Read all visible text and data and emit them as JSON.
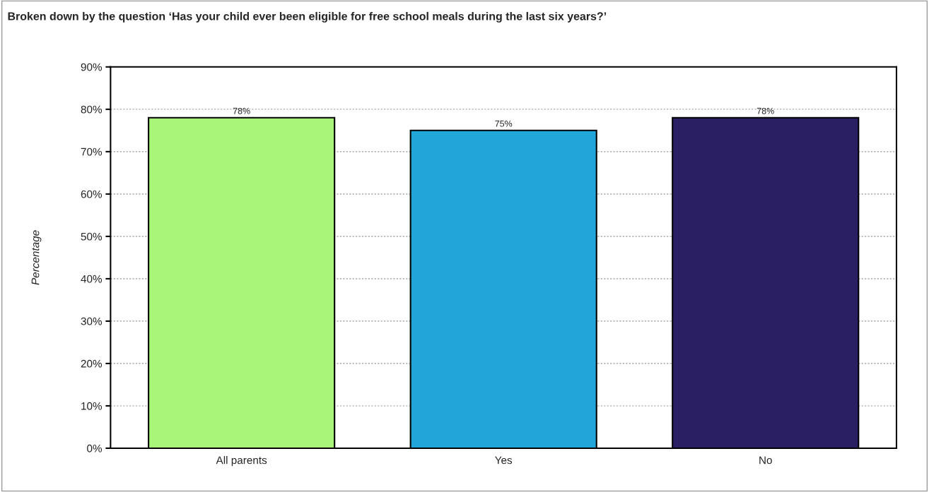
{
  "chart_data": {
    "type": "bar",
    "title": "Broken down by the question ‘Has your child ever been eligible for free school meals during the last six years?’",
    "ylabel": "Percentage",
    "categories": [
      "All parents",
      "Yes",
      "No"
    ],
    "values": [
      78,
      75,
      78
    ],
    "colors": [
      "#a8f578",
      "#22a5d8",
      "#2a1f62"
    ],
    "value_labels": [
      "78%",
      "75%",
      "78%"
    ],
    "ylim": [
      0,
      90
    ],
    "yticks": [
      {
        "value": 0,
        "label": "0%"
      },
      {
        "value": 10,
        "label": "10%"
      },
      {
        "value": 20,
        "label": "20%"
      },
      {
        "value": 30,
        "label": "30%"
      },
      {
        "value": 40,
        "label": "40%"
      },
      {
        "value": 50,
        "label": "50%"
      },
      {
        "value": 60,
        "label": "60%"
      },
      {
        "value": 70,
        "label": "70%"
      },
      {
        "value": 80,
        "label": "80%"
      },
      {
        "value": 90,
        "label": "90%"
      }
    ],
    "grid": "y",
    "legend": false
  }
}
